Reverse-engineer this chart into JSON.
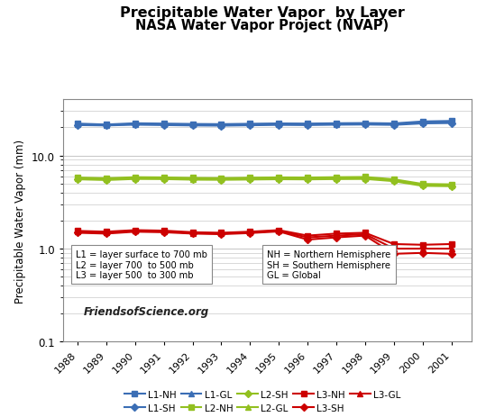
{
  "title1": "Precipitable Water Vapor  by Layer",
  "title2": "NASA Water Vapor Project (NVAP)",
  "ylabel": "Precipitable Water Vapor (mm)",
  "years": [
    1988,
    1989,
    1990,
    1991,
    1992,
    1993,
    1994,
    1995,
    1996,
    1997,
    1998,
    1999,
    2000,
    2001
  ],
  "series": {
    "L1-NH": [
      22.0,
      21.5,
      22.2,
      22.0,
      21.8,
      21.7,
      21.9,
      22.1,
      22.0,
      22.2,
      22.3,
      22.1,
      23.2,
      23.5
    ],
    "L1-SH": [
      21.2,
      21.0,
      21.4,
      21.2,
      21.0,
      20.9,
      21.1,
      21.3,
      21.2,
      21.4,
      21.5,
      21.3,
      22.1,
      22.3
    ],
    "L1-GL": [
      21.6,
      21.2,
      21.8,
      21.6,
      21.4,
      21.3,
      21.5,
      21.7,
      21.6,
      21.8,
      21.9,
      21.7,
      22.6,
      22.9
    ],
    "L2-NH": [
      5.8,
      5.7,
      5.85,
      5.82,
      5.75,
      5.72,
      5.78,
      5.82,
      5.8,
      5.85,
      5.88,
      5.55,
      4.95,
      4.9
    ],
    "L2-SH": [
      5.55,
      5.45,
      5.6,
      5.58,
      5.5,
      5.48,
      5.52,
      5.56,
      5.54,
      5.58,
      5.6,
      5.3,
      4.72,
      4.68
    ],
    "L2-GL": [
      5.68,
      5.58,
      5.72,
      5.7,
      5.62,
      5.6,
      5.65,
      5.69,
      5.67,
      5.72,
      5.74,
      5.42,
      4.84,
      4.79
    ],
    "L3-NH": [
      1.55,
      1.52,
      1.58,
      1.56,
      1.5,
      1.48,
      1.52,
      1.58,
      1.38,
      1.45,
      1.48,
      1.12,
      1.1,
      1.12
    ],
    "L3-SH": [
      1.48,
      1.45,
      1.52,
      1.5,
      1.45,
      1.43,
      1.47,
      1.53,
      1.25,
      1.32,
      1.38,
      0.88,
      0.9,
      0.88
    ],
    "L3-GL": [
      1.52,
      1.48,
      1.55,
      1.53,
      1.47,
      1.45,
      1.5,
      1.55,
      1.32,
      1.38,
      1.43,
      1.0,
      1.0,
      1.0
    ]
  },
  "colors": {
    "L1-NH": "#3B6EB5",
    "L1-SH": "#3B6EB5",
    "L1-GL": "#3B6EB5",
    "L2-NH": "#92C020",
    "L2-SH": "#92C020",
    "L2-GL": "#92C020",
    "L3-NH": "#CC0000",
    "L3-SH": "#CC0000",
    "L3-GL": "#CC0000"
  },
  "markers": {
    "L1-NH": "s",
    "L1-SH": "D",
    "L1-GL": "^",
    "L2-NH": "s",
    "L2-SH": "D",
    "L2-GL": "^",
    "L3-NH": "s",
    "L3-SH": "D",
    "L3-GL": "^"
  },
  "legend_row1": [
    "L1-NH",
    "L1-SH",
    "L1-GL",
    "L2-NH",
    "L2-SH"
  ],
  "legend_row2": [
    "L2-GL",
    "L3-NH",
    "L3-SH",
    "L3-GL"
  ],
  "ylim": [
    0.1,
    40
  ],
  "annotation_left": "L1 = layer surface to 700 mb\nL2 = layer 700  to 500 mb\nL3 = layer 500  to 300 mb",
  "annotation_right": "NH = Northern Hemisphere\nSH = Southern Hemisphere\nGL = Global",
  "watermark": "FriendsofScience.org",
  "plot_bg": "#FFFFFF",
  "fig_bg": "#FFFFFF"
}
